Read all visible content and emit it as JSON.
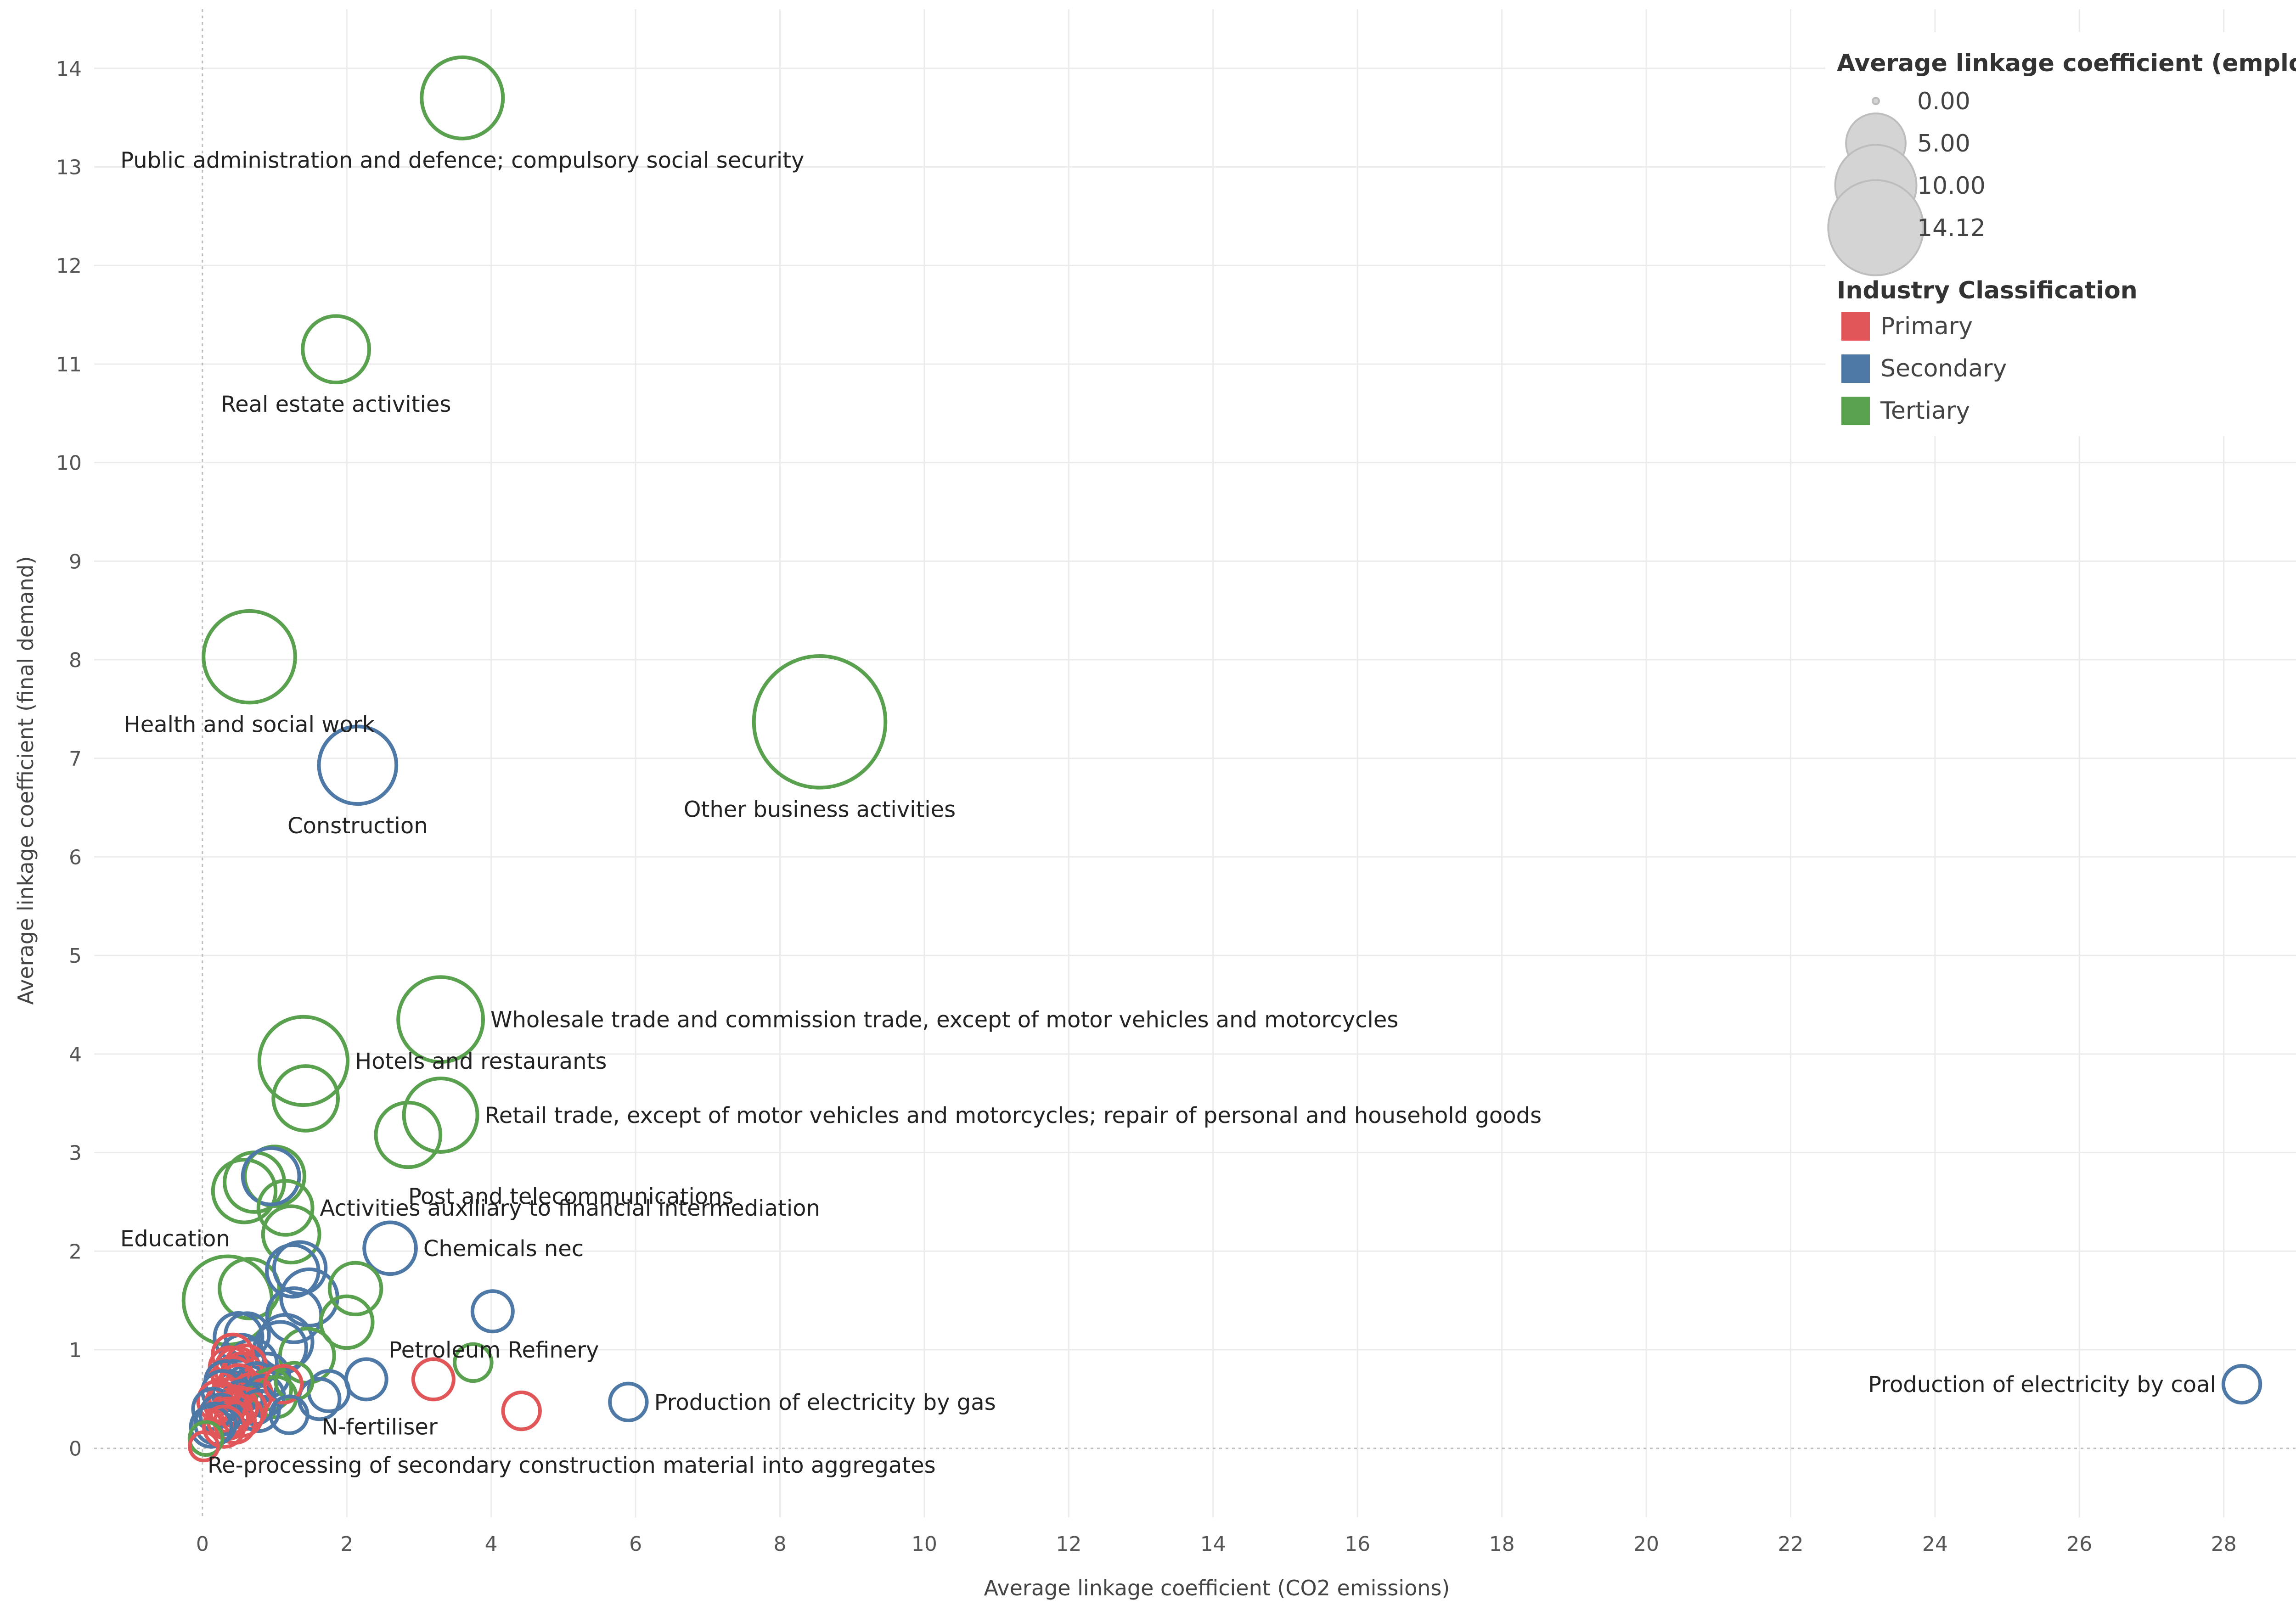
{
  "chart_data": {
    "type": "scatter",
    "title": "",
    "xlabel": "Average linkage coefficient (CO2 emissions)",
    "ylabel": "Average linkage coefficient (final demand)",
    "xlim": [
      -1.5,
      29.7
    ],
    "ylim": [
      -0.7,
      14.6
    ],
    "x_ticks": [
      0,
      2,
      4,
      6,
      8,
      10,
      12,
      14,
      16,
      18,
      20,
      22,
      24,
      26,
      28
    ],
    "y_ticks": [
      0,
      1,
      2,
      3,
      4,
      5,
      6,
      7,
      8,
      9,
      10,
      11,
      12,
      13,
      14
    ],
    "grid": true,
    "size_legend": {
      "title": "Average linkage coefficient (employment)",
      "entries": [
        {
          "label": "0.00",
          "value": 0
        },
        {
          "label": "5.00",
          "value": 5
        },
        {
          "label": "10.00",
          "value": 10
        },
        {
          "label": "14.12",
          "value": 14.12
        }
      ]
    },
    "color_legend": {
      "title": "Industry Classification",
      "entries": [
        {
          "label": "Primary",
          "color": "#e15759"
        },
        {
          "label": "Secondary",
          "color": "#4e79a7"
        },
        {
          "label": "Tertiary",
          "color": "#59a14f"
        }
      ]
    },
    "colors": {
      "Primary": "#e15759",
      "Secondary": "#4e79a7",
      "Tertiary": "#59a14f"
    },
    "points": [
      {
        "x": 3.6,
        "y": 13.7,
        "size": 5.0,
        "cls": "Tertiary"
      },
      {
        "x": 1.85,
        "y": 11.15,
        "size": 3.2,
        "cls": "Tertiary"
      },
      {
        "x": 0.65,
        "y": 8.03,
        "size": 6.5,
        "cls": "Tertiary"
      },
      {
        "x": 2.15,
        "y": 6.93,
        "size": 4.5,
        "cls": "Secondary"
      },
      {
        "x": 8.55,
        "y": 7.37,
        "size": 14.12,
        "cls": "Tertiary"
      },
      {
        "x": 3.3,
        "y": 4.35,
        "size": 5.5,
        "cls": "Tertiary"
      },
      {
        "x": 1.4,
        "y": 3.93,
        "size": 6.0,
        "cls": "Tertiary"
      },
      {
        "x": 1.43,
        "y": 3.55,
        "size": 3.0,
        "cls": "Tertiary"
      },
      {
        "x": 3.3,
        "y": 3.38,
        "size": 4.0,
        "cls": "Tertiary"
      },
      {
        "x": 2.85,
        "y": 3.18,
        "size": 3.0,
        "cls": "Tertiary"
      },
      {
        "x": 0.95,
        "y": 2.76,
        "size": 2.2,
        "cls": "Secondary"
      },
      {
        "x": 1.0,
        "y": 2.76,
        "size": 2.5,
        "cls": "Tertiary"
      },
      {
        "x": 0.72,
        "y": 2.7,
        "size": 2.5,
        "cls": "Tertiary"
      },
      {
        "x": 0.58,
        "y": 2.61,
        "size": 2.8,
        "cls": "Tertiary"
      },
      {
        "x": 1.15,
        "y": 2.44,
        "size": 2.0,
        "cls": "Tertiary"
      },
      {
        "x": 1.23,
        "y": 2.17,
        "size": 2.2,
        "cls": "Tertiary"
      },
      {
        "x": 2.6,
        "y": 2.03,
        "size": 1.8,
        "cls": "Secondary"
      },
      {
        "x": 1.35,
        "y": 1.83,
        "size": 1.8,
        "cls": "Secondary"
      },
      {
        "x": 1.25,
        "y": 1.8,
        "size": 1.8,
        "cls": "Secondary"
      },
      {
        "x": 2.12,
        "y": 1.62,
        "size": 1.8,
        "cls": "Tertiary"
      },
      {
        "x": 0.65,
        "y": 1.62,
        "size": 2.5,
        "cls": "Tertiary"
      },
      {
        "x": 0.35,
        "y": 1.5,
        "size": 6.0,
        "cls": "Tertiary"
      },
      {
        "x": 1.48,
        "y": 1.53,
        "size": 2.2,
        "cls": "Secondary"
      },
      {
        "x": 4.02,
        "y": 1.39,
        "size": 1.0,
        "cls": "Secondary"
      },
      {
        "x": 1.27,
        "y": 1.35,
        "size": 2.0,
        "cls": "Secondary"
      },
      {
        "x": 2.0,
        "y": 1.28,
        "size": 1.8,
        "cls": "Tertiary"
      },
      {
        "x": 0.62,
        "y": 1.15,
        "size": 1.2,
        "cls": "Secondary"
      },
      {
        "x": 0.5,
        "y": 1.13,
        "size": 1.5,
        "cls": "Secondary"
      },
      {
        "x": 1.15,
        "y": 1.08,
        "size": 2.0,
        "cls": "Secondary"
      },
      {
        "x": 1.08,
        "y": 1.02,
        "size": 1.8,
        "cls": "Secondary"
      },
      {
        "x": 1.45,
        "y": 0.94,
        "size": 2.0,
        "cls": "Tertiary"
      },
      {
        "x": 0.42,
        "y": 0.95,
        "size": 1.0,
        "cls": "Primary"
      },
      {
        "x": 0.55,
        "y": 0.93,
        "size": 1.2,
        "cls": "Secondary"
      },
      {
        "x": 0.7,
        "y": 0.86,
        "size": 1.5,
        "cls": "Secondary"
      },
      {
        "x": 3.75,
        "y": 0.87,
        "size": 0.8,
        "cls": "Tertiary"
      },
      {
        "x": 0.6,
        "y": 0.84,
        "size": 1.0,
        "cls": "Primary"
      },
      {
        "x": 0.38,
        "y": 0.82,
        "size": 1.0,
        "cls": "Primary"
      },
      {
        "x": 0.48,
        "y": 0.8,
        "size": 1.2,
        "cls": "Primary"
      },
      {
        "x": 0.9,
        "y": 0.74,
        "size": 1.2,
        "cls": "Secondary"
      },
      {
        "x": 0.55,
        "y": 0.76,
        "size": 1.0,
        "cls": "Primary"
      },
      {
        "x": 0.42,
        "y": 0.72,
        "size": 1.0,
        "cls": "Primary"
      },
      {
        "x": 2.27,
        "y": 0.7,
        "size": 1.0,
        "cls": "Secondary"
      },
      {
        "x": 3.2,
        "y": 0.7,
        "size": 1.0,
        "cls": "Primary"
      },
      {
        "x": 1.27,
        "y": 0.68,
        "size": 0.8,
        "cls": "Tertiary"
      },
      {
        "x": 0.32,
        "y": 0.68,
        "size": 1.0,
        "cls": "Secondary"
      },
      {
        "x": 0.75,
        "y": 0.66,
        "size": 1.0,
        "cls": "Secondary"
      },
      {
        "x": 1.12,
        "y": 0.65,
        "size": 0.8,
        "cls": "Primary"
      },
      {
        "x": 0.5,
        "y": 0.64,
        "size": 1.0,
        "cls": "Primary"
      },
      {
        "x": 28.25,
        "y": 0.65,
        "size": 0.8,
        "cls": "Secondary"
      },
      {
        "x": 0.62,
        "y": 0.62,
        "size": 1.2,
        "cls": "Secondary"
      },
      {
        "x": 0.95,
        "y": 0.6,
        "size": 1.0,
        "cls": "Tertiary"
      },
      {
        "x": 1.75,
        "y": 0.58,
        "size": 1.0,
        "cls": "Secondary"
      },
      {
        "x": 0.28,
        "y": 0.58,
        "size": 1.0,
        "cls": "Secondary"
      },
      {
        "x": 0.45,
        "y": 0.55,
        "size": 1.2,
        "cls": "Secondary"
      },
      {
        "x": 0.68,
        "y": 0.55,
        "size": 1.0,
        "cls": "Primary"
      },
      {
        "x": 0.85,
        "y": 0.53,
        "size": 1.0,
        "cls": "Secondary"
      },
      {
        "x": 1.02,
        "y": 0.52,
        "size": 1.0,
        "cls": "Tertiary"
      },
      {
        "x": 0.38,
        "y": 0.5,
        "size": 1.0,
        "cls": "Primary"
      },
      {
        "x": 1.62,
        "y": 0.5,
        "size": 1.0,
        "cls": "Secondary"
      },
      {
        "x": 0.55,
        "y": 0.48,
        "size": 1.0,
        "cls": "Secondary"
      },
      {
        "x": 0.22,
        "y": 0.48,
        "size": 1.0,
        "cls": "Primary"
      },
      {
        "x": 5.9,
        "y": 0.47,
        "size": 0.8,
        "cls": "Secondary"
      },
      {
        "x": 0.72,
        "y": 0.45,
        "size": 1.0,
        "cls": "Secondary"
      },
      {
        "x": 0.32,
        "y": 0.44,
        "size": 1.0,
        "cls": "Primary"
      },
      {
        "x": 0.48,
        "y": 0.42,
        "size": 1.0,
        "cls": "Primary"
      },
      {
        "x": 0.6,
        "y": 0.4,
        "size": 1.0,
        "cls": "Primary"
      },
      {
        "x": 0.15,
        "y": 0.4,
        "size": 1.0,
        "cls": "Secondary"
      },
      {
        "x": 4.42,
        "y": 0.38,
        "size": 0.8,
        "cls": "Primary"
      },
      {
        "x": 0.78,
        "y": 0.38,
        "size": 1.0,
        "cls": "Secondary"
      },
      {
        "x": 0.4,
        "y": 0.36,
        "size": 1.0,
        "cls": "Primary"
      },
      {
        "x": 0.25,
        "y": 0.34,
        "size": 1.0,
        "cls": "Secondary"
      },
      {
        "x": 0.55,
        "y": 0.33,
        "size": 1.0,
        "cls": "Primary"
      },
      {
        "x": 1.2,
        "y": 0.34,
        "size": 0.8,
        "cls": "Secondary"
      },
      {
        "x": 0.35,
        "y": 0.3,
        "size": 1.0,
        "cls": "Primary"
      },
      {
        "x": 0.45,
        "y": 0.26,
        "size": 1.0,
        "cls": "Primary"
      },
      {
        "x": 0.18,
        "y": 0.25,
        "size": 1.0,
        "cls": "Secondary"
      },
      {
        "x": 0.12,
        "y": 0.22,
        "size": 1.0,
        "cls": "Secondary"
      },
      {
        "x": 0.3,
        "y": 0.22,
        "size": 1.0,
        "cls": "Primary"
      },
      {
        "x": 0.05,
        "y": 0.1,
        "size": 0.6,
        "cls": "Tertiary"
      },
      {
        "x": 0.02,
        "y": 0.02,
        "size": 0.4,
        "cls": "Primary"
      }
    ],
    "annotations": [
      {
        "text": "Public administration and defence; compulsory social security",
        "x": 3.6,
        "y": 13.7,
        "anchor": "below-center"
      },
      {
        "text": "Real estate activities",
        "x": 1.85,
        "y": 11.15,
        "anchor": "below-center"
      },
      {
        "text": "Health and social work",
        "x": 0.65,
        "y": 8.03,
        "anchor": "below-center"
      },
      {
        "text": "Other business activities",
        "x": 8.55,
        "y": 7.37,
        "anchor": "below-center"
      },
      {
        "text": "Construction",
        "x": 2.15,
        "y": 6.93,
        "anchor": "below-center"
      },
      {
        "text": "Wholesale trade and commission trade, except of motor vehicles and motorcycles",
        "x": 3.3,
        "y": 4.35,
        "anchor": "right"
      },
      {
        "text": "Hotels and restaurants",
        "x": 1.4,
        "y": 3.93,
        "anchor": "right"
      },
      {
        "text": "Retail trade, except of motor vehicles and motorcycles; repair of personal and household goods",
        "x": 3.3,
        "y": 3.38,
        "anchor": "right"
      },
      {
        "text": "Post and telecommunications",
        "x": 2.85,
        "y": 3.18,
        "anchor": "below-left"
      },
      {
        "text": "Activities auxiliary to financial intermediation",
        "x": 1.15,
        "y": 2.44,
        "anchor": "right"
      },
      {
        "text": "Chemicals nec",
        "x": 2.6,
        "y": 2.03,
        "anchor": "right"
      },
      {
        "text": "Education",
        "x": 0.35,
        "y": 1.5,
        "anchor": "above-left"
      },
      {
        "text": "Petroleum Refinery",
        "x": 2.58,
        "y": 1.0,
        "anchor": "plain"
      },
      {
        "text": "Production of electricity by gas",
        "x": 5.9,
        "y": 0.47,
        "anchor": "right"
      },
      {
        "text": "N-fertiliser",
        "x": 1.65,
        "y": 0.22,
        "anchor": "plain"
      },
      {
        "text": "Production of electricity by coal",
        "x": 28.25,
        "y": 0.65,
        "anchor": "left"
      },
      {
        "text": "Re-processing of secondary construction material into aggregates",
        "x": 0.07,
        "y": -0.17,
        "anchor": "plain"
      }
    ]
  }
}
